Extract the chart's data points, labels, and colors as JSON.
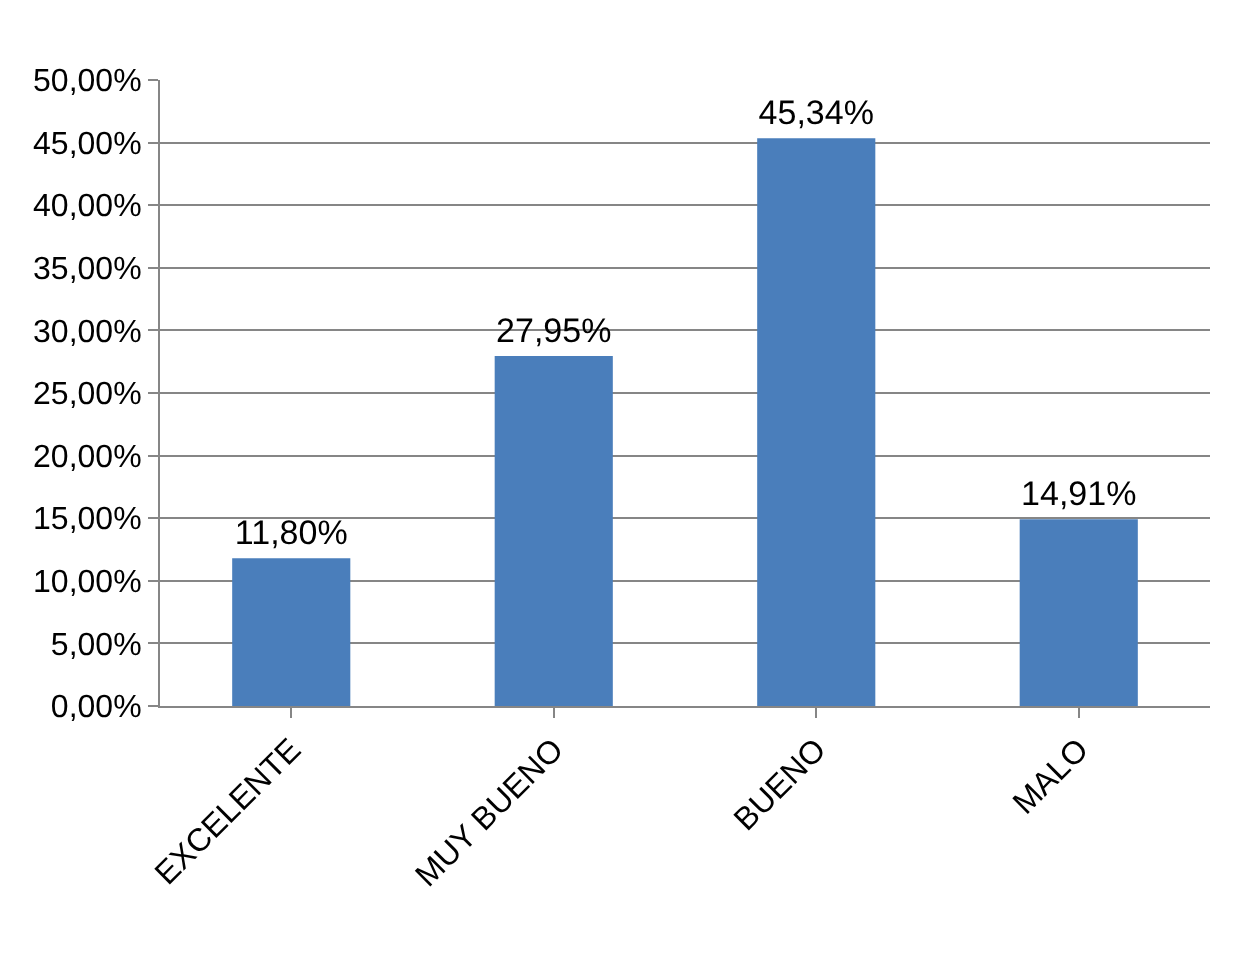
{
  "chart_data": {
    "type": "bar",
    "categories": [
      "EXCELENTE",
      "MUY BUENO",
      "BUENO",
      "MALO"
    ],
    "values": [
      11.8,
      27.95,
      45.34,
      14.91
    ],
    "value_labels": [
      "11,80%",
      "27,95%",
      "45,34%",
      "14,91%"
    ],
    "color": "#4a7ebb",
    "ylim": [
      0,
      50
    ],
    "yticks": [
      {
        "value": 0,
        "label": "0,00%"
      },
      {
        "value": 5,
        "label": "5,00%"
      },
      {
        "value": 10,
        "label": "10,00%"
      },
      {
        "value": 15,
        "label": "15,00%"
      },
      {
        "value": 20,
        "label": "20,00%"
      },
      {
        "value": 25,
        "label": "25,00%"
      },
      {
        "value": 30,
        "label": "30,00%"
      },
      {
        "value": 35,
        "label": "35,00%"
      },
      {
        "value": 40,
        "label": "40,00%"
      },
      {
        "value": 45,
        "label": "45,00%"
      },
      {
        "value": 50,
        "label": "50,00%"
      }
    ],
    "grid": "y"
  }
}
